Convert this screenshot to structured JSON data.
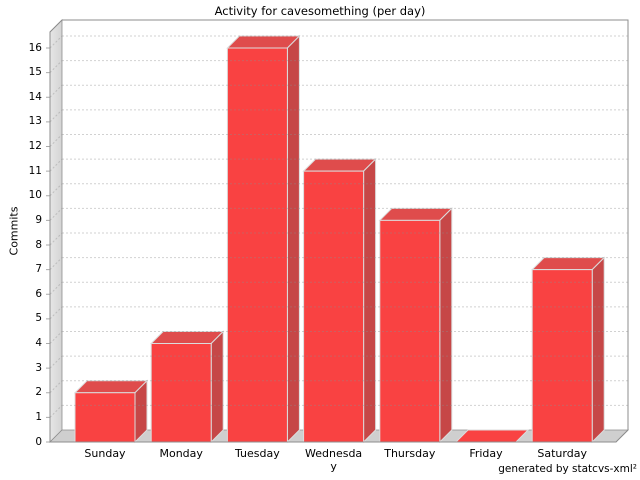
{
  "footer": {
    "credit": "generated by statcvs-xml²"
  },
  "chart_data": {
    "type": "bar",
    "title": "Activity for cavesomething (per day)",
    "categories": [
      "Sunday",
      "Monday",
      "Tuesday",
      "Wednesday",
      "Thursday",
      "Friday",
      "Saturday"
    ],
    "values": [
      2,
      4,
      16,
      11,
      9,
      0,
      7
    ],
    "xlabel": "",
    "ylabel": "Commits",
    "ylim": [
      0,
      16.65
    ],
    "ytick_interval": 1,
    "ytick_max": 16,
    "grid": "horizontal-dashed",
    "legend_position": "none",
    "style": "3d-bar",
    "colors": {
      "bar_front": "#f94242",
      "bar_top": "#df4c4c",
      "bar_side": "#c64747",
      "bar_outline": "#dcdcdc",
      "wall": "#d4d4d4",
      "wall_highlight": "#e6e6e6",
      "floor": "#cfcfcf",
      "border": "#8e8e8e",
      "grid": "#8c8c8c",
      "tick": "#aaaaaa",
      "text": "#000000",
      "background": "#ffffff"
    }
  }
}
